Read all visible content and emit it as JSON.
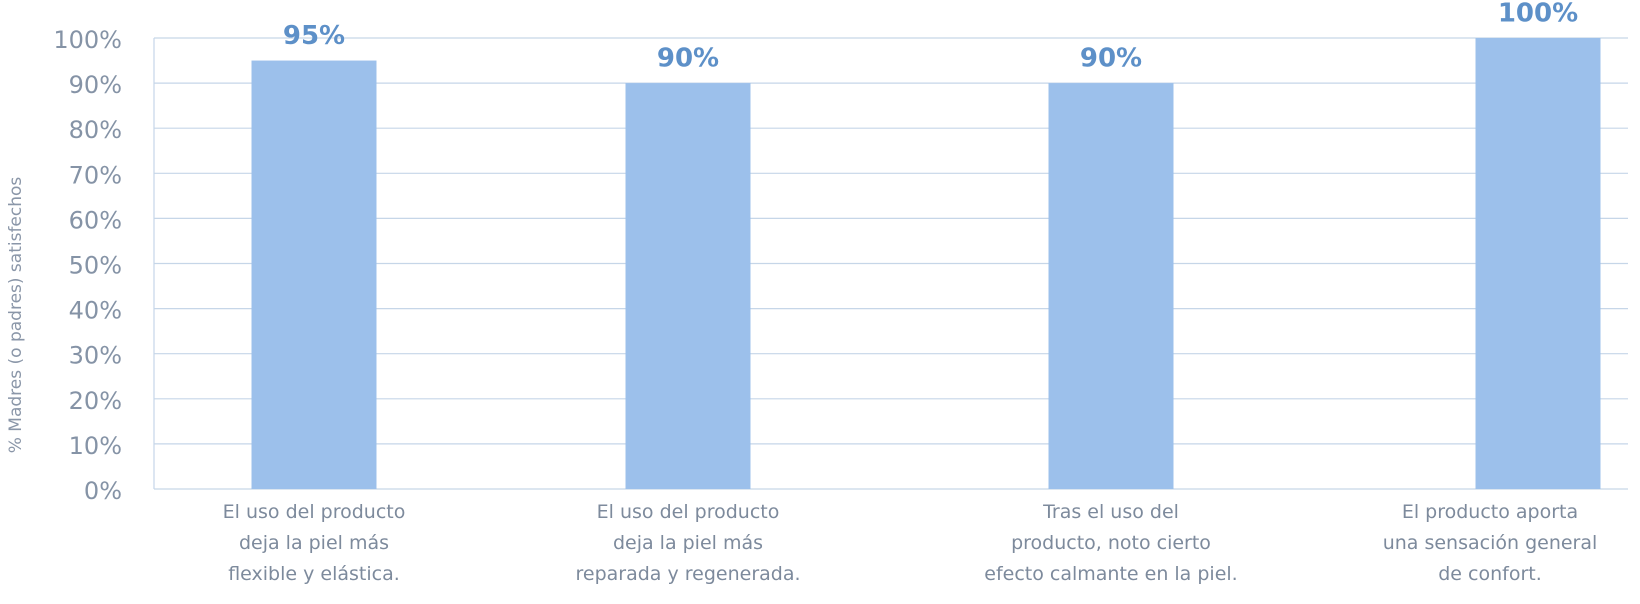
{
  "chart_data": {
    "type": "bar",
    "y_label": "% Madres (o padres) satisfechos",
    "categories": [
      "El uso del producto\ndeja la piel más\nflexible y elástica.",
      "El uso del producto\ndeja la piel más\nreparada y regenerada.",
      "Tras el uso del\nproducto, noto cierto\nefecto calmante en la piel.",
      "El producto aporta\nuna sensación general\nde confort."
    ],
    "values": [
      95,
      90,
      90,
      100
    ],
    "value_labels": [
      "95%",
      "90%",
      "90%",
      "100%"
    ],
    "color": "#9cc0eb",
    "ylim": [
      0,
      100
    ],
    "yticks": [
      {
        "value": 0,
        "label": "0%"
      },
      {
        "value": 10,
        "label": "10%"
      },
      {
        "value": 20,
        "label": "20%"
      },
      {
        "value": 30,
        "label": "30%"
      },
      {
        "value": 40,
        "label": "40%"
      },
      {
        "value": 50,
        "label": "50%"
      },
      {
        "value": 60,
        "label": "60%"
      },
      {
        "value": 70,
        "label": "70%"
      },
      {
        "value": 80,
        "label": "80%"
      },
      {
        "value": 90,
        "label": "90%"
      },
      {
        "value": 100,
        "label": "100%"
      }
    ],
    "grid": true
  }
}
